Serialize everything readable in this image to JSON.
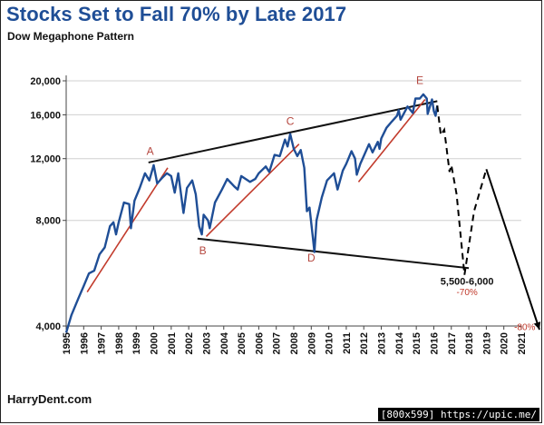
{
  "header": {
    "title": "Stocks Set to Fall 70% by Late 2017",
    "subtitle": "Dow Megaphone Pattern"
  },
  "footer": {
    "source": "HarryDent.com",
    "watermark": "[800x599] https://upic.me/"
  },
  "chart_data": {
    "type": "line",
    "title": "Stocks Set to Fall 70% by Late 2017",
    "subtitle": "Dow Megaphone Pattern",
    "scale": "log",
    "xlim": [
      1995,
      2021
    ],
    "ylim": [
      4000,
      20000
    ],
    "x_ticks": [
      "1995",
      "1996",
      "1997",
      "1998",
      "1999",
      "2000",
      "2001",
      "2002",
      "2003",
      "2004",
      "2005",
      "2006",
      "2007",
      "2008",
      "2009",
      "2010",
      "2011",
      "2012",
      "2013",
      "2014",
      "2015",
      "2016",
      "2017",
      "2018",
      "2019",
      "2020",
      "2021"
    ],
    "y_ticks": [
      4000,
      8000,
      12000,
      16000,
      20000
    ],
    "y_tick_labels": [
      "4,000",
      "8,000",
      "12,000",
      "16,000",
      "20,000"
    ],
    "series": [
      {
        "name": "Dow (actual)",
        "color": "#1f4e96",
        "points": [
          [
            1995.0,
            3830
          ],
          [
            1995.3,
            4300
          ],
          [
            1995.7,
            4800
          ],
          [
            1996.0,
            5200
          ],
          [
            1996.3,
            5650
          ],
          [
            1996.6,
            5750
          ],
          [
            1996.9,
            6400
          ],
          [
            1997.2,
            6700
          ],
          [
            1997.5,
            7700
          ],
          [
            1997.7,
            7900
          ],
          [
            1997.85,
            7300
          ],
          [
            1998.0,
            7900
          ],
          [
            1998.3,
            9000
          ],
          [
            1998.6,
            8900
          ],
          [
            1998.7,
            7600
          ],
          [
            1998.9,
            9100
          ],
          [
            1999.2,
            9900
          ],
          [
            1999.5,
            10900
          ],
          [
            1999.75,
            10400
          ],
          [
            2000.0,
            11500
          ],
          [
            2000.2,
            10200
          ],
          [
            2000.5,
            10600
          ],
          [
            2000.75,
            10900
          ],
          [
            2001.0,
            10700
          ],
          [
            2001.2,
            9600
          ],
          [
            2001.4,
            10900
          ],
          [
            2001.7,
            8400
          ],
          [
            2001.9,
            9900
          ],
          [
            2002.2,
            10400
          ],
          [
            2002.4,
            9500
          ],
          [
            2002.6,
            7700
          ],
          [
            2002.75,
            7300
          ],
          [
            2002.85,
            8300
          ],
          [
            2003.1,
            8000
          ],
          [
            2003.2,
            7600
          ],
          [
            2003.5,
            9000
          ],
          [
            2003.9,
            9800
          ],
          [
            2004.2,
            10500
          ],
          [
            2004.6,
            10000
          ],
          [
            2004.8,
            9800
          ],
          [
            2005.0,
            10700
          ],
          [
            2005.5,
            10300
          ],
          [
            2005.8,
            10500
          ],
          [
            2006.0,
            10900
          ],
          [
            2006.4,
            11400
          ],
          [
            2006.6,
            11000
          ],
          [
            2006.9,
            12300
          ],
          [
            2007.2,
            12200
          ],
          [
            2007.5,
            13600
          ],
          [
            2007.65,
            13000
          ],
          [
            2007.8,
            14100
          ],
          [
            2008.0,
            12800
          ],
          [
            2008.2,
            12200
          ],
          [
            2008.4,
            12700
          ],
          [
            2008.6,
            11300
          ],
          [
            2008.75,
            8500
          ],
          [
            2008.9,
            8700
          ],
          [
            2009.1,
            7100
          ],
          [
            2009.18,
            6500
          ],
          [
            2009.3,
            8000
          ],
          [
            2009.6,
            9300
          ],
          [
            2009.9,
            10400
          ],
          [
            2010.3,
            10900
          ],
          [
            2010.5,
            9800
          ],
          [
            2010.8,
            11100
          ],
          [
            2011.0,
            11600
          ],
          [
            2011.3,
            12600
          ],
          [
            2011.5,
            12000
          ],
          [
            2011.6,
            10800
          ],
          [
            2011.8,
            11600
          ],
          [
            2012.0,
            12200
          ],
          [
            2012.3,
            13200
          ],
          [
            2012.5,
            12500
          ],
          [
            2012.8,
            13400
          ],
          [
            2012.9,
            12800
          ],
          [
            2013.0,
            13700
          ],
          [
            2013.3,
            14700
          ],
          [
            2013.6,
            15300
          ],
          [
            2013.9,
            15900
          ],
          [
            2014.0,
            16500
          ],
          [
            2014.1,
            15500
          ],
          [
            2014.5,
            16900
          ],
          [
            2014.8,
            16200
          ],
          [
            2014.95,
            17800
          ],
          [
            2015.2,
            17800
          ],
          [
            2015.4,
            18300
          ],
          [
            2015.6,
            17800
          ],
          [
            2015.65,
            16100
          ],
          [
            2015.9,
            17700
          ],
          [
            2016.0,
            16400
          ],
          [
            2016.1,
            15900
          ],
          [
            2016.2,
            17000
          ]
        ]
      },
      {
        "name": "Projection (dashed)",
        "color": "#000000",
        "points": [
          [
            2016.2,
            17000
          ],
          [
            2016.4,
            14000
          ],
          [
            2016.6,
            14500
          ],
          [
            2016.9,
            11000
          ],
          [
            2017.0,
            11500
          ],
          [
            2017.3,
            9500
          ],
          [
            2017.75,
            5600
          ],
          [
            2018.3,
            8500
          ],
          [
            2019.0,
            11200
          ]
        ]
      }
    ],
    "trendlines": [
      {
        "name": "upper boundary",
        "color": "#111111",
        "from": [
          1999.7,
          11700
        ],
        "to": [
          2016.2,
          17500
        ]
      },
      {
        "name": "lower boundary",
        "color": "#111111",
        "from": [
          2002.5,
          7100
        ],
        "to": [
          2018.0,
          5850
        ]
      },
      {
        "name": "rise 1996-2000",
        "color": "#c23b2c",
        "from": [
          1996.2,
          5000
        ],
        "to": [
          2000.8,
          11300
        ]
      },
      {
        "name": "rise 2003-2007",
        "color": "#c23b2c",
        "from": [
          2003.0,
          7200
        ],
        "to": [
          2008.3,
          13200
        ]
      },
      {
        "name": "rise 2011-2015",
        "color": "#c23b2c",
        "from": [
          2011.7,
          10300
        ],
        "to": [
          2015.5,
          17700
        ]
      }
    ],
    "projection_arrow": {
      "from": [
        2019.0,
        11200
      ],
      "to": [
        2022.5,
        3900
      ]
    },
    "points": [
      {
        "label": "A",
        "x": 1999.8,
        "y": 12300
      },
      {
        "label": "B",
        "x": 2002.8,
        "y": 6400
      },
      {
        "label": "C",
        "x": 2007.8,
        "y": 15000
      },
      {
        "label": "D",
        "x": 2009.0,
        "y": 6100
      },
      {
        "label": "E",
        "x": 2015.2,
        "y": 19600
      }
    ],
    "annotations": [
      {
        "text": "5,500-6,000",
        "x": 2017.9,
        "y": 5250
      },
      {
        "text": "-70%",
        "x": 2017.9,
        "y": 4900
      },
      {
        "text": "-80%",
        "x": 2021.8,
        "y": 3890
      }
    ]
  }
}
